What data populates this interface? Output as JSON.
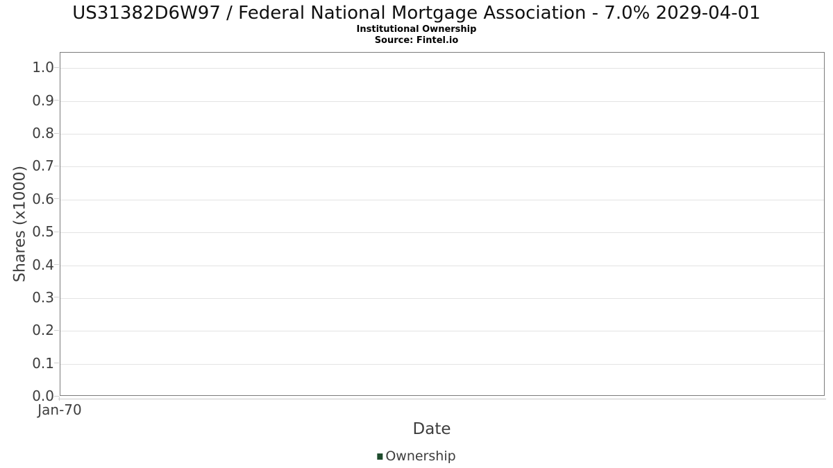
{
  "chart_data": {
    "type": "line",
    "title": "US31382D6W97 / Federal National Mortgage Association - 7.0% 2029-04-01",
    "subtitle": "Institutional Ownership",
    "source": "Source: Fintel.io",
    "xlabel": "Date",
    "ylabel": "Shares (x1000)",
    "x_ticks": [
      "Jan-70"
    ],
    "y_ticks": [
      "1.0",
      "0.9",
      "0.8",
      "0.7",
      "0.6",
      "0.5",
      "0.4",
      "0.3",
      "0.2",
      "0.1",
      "0.0"
    ],
    "ylim": [
      0,
      1.047
    ],
    "grid": true,
    "legend_position": "bottom",
    "legend_marker_color": "#1e4b2d",
    "axis_color": "#7a7a7a",
    "gridline_color": "#e3e3e3",
    "series": [
      {
        "name": "Ownership",
        "color": "#1e4b2d",
        "x": [],
        "values": []
      }
    ]
  }
}
